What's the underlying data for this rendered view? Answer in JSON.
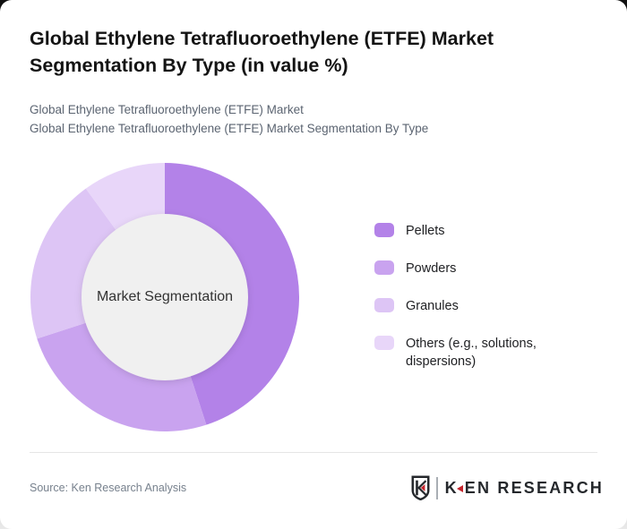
{
  "header": {
    "title": "Global Ethylene Tetrafluoroethylene (ETFE) Market Segmentation By Type (in value %)",
    "subtitles": [
      "Global Ethylene Tetrafluoroethylene (ETFE) Market",
      "Global Ethylene Tetrafluoroethylene (ETFE) Market Segmentation By Type"
    ]
  },
  "chart_data": {
    "type": "pie",
    "subtype": "donut",
    "title": "Global Ethylene Tetrafluoroethylene (ETFE) Market Segmentation By Type (in value %)",
    "center_label": "Market Segmentation",
    "categories": [
      "Pellets",
      "Powders",
      "Granules",
      "Others (e.g., solutions, dispersions)"
    ],
    "values": [
      45,
      25,
      20,
      10
    ],
    "unit": "value %",
    "colors": [
      "#b382e8",
      "#c9a3ef",
      "#ddc5f5",
      "#e8d6f9"
    ],
    "start_angle_deg": 0,
    "direction": "clockwise",
    "inner_radius_ratio": 0.62,
    "center_fill": "#f0f0f0",
    "legend_position": "right",
    "data_labels_shown": false
  },
  "footer": {
    "source_text": "Source: Ken Research Analysis",
    "logo": {
      "k": "K",
      "rest": "EN RESEARCH",
      "full": "KEN RESEARCH"
    }
  },
  "theme": {
    "bg_top": "#101010",
    "bg_bottom": "#e9e9e9",
    "card": "#ffffff",
    "title": "#141414",
    "subtitle": "#5b6471",
    "legend_label": "#202124",
    "center_label": "#333333",
    "divider": "#e5e5e5",
    "source": "#77818d",
    "logo_dark": "#25282c",
    "logo_red": "#c5232b",
    "logo_sep": "#a9aeb4"
  }
}
